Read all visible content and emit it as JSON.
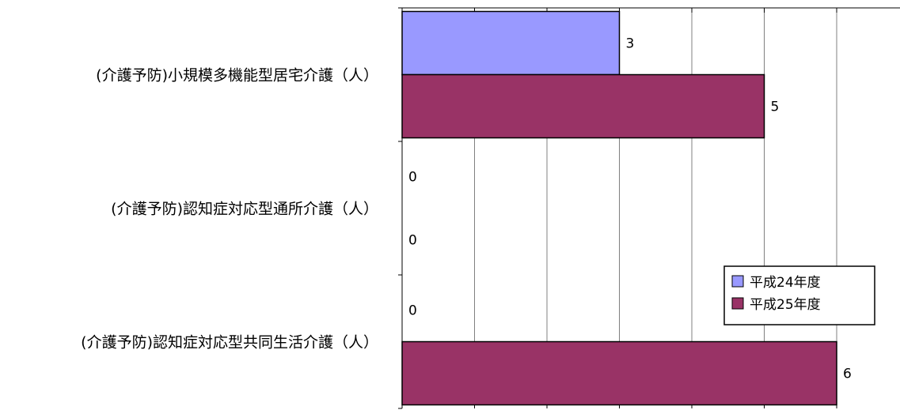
{
  "chart_data": {
    "type": "bar",
    "orientation": "horizontal",
    "categories": [
      "(介護予防)小規模多機能型居宅介護（人）",
      "(介護予防)認知症対応型通所介護（人）",
      "(介護予防)認知症対応型共同生活介護（人）"
    ],
    "series": [
      {
        "name": "平成24年度",
        "values": [
          3,
          0,
          0
        ],
        "color": "#9999ff"
      },
      {
        "name": "平成25年度",
        "values": [
          5,
          0,
          6
        ],
        "color": "#993366"
      }
    ],
    "xlim": [
      0,
      7
    ],
    "grid": true,
    "legend": "bottom-right",
    "title": "",
    "xlabel": "",
    "ylabel": ""
  }
}
